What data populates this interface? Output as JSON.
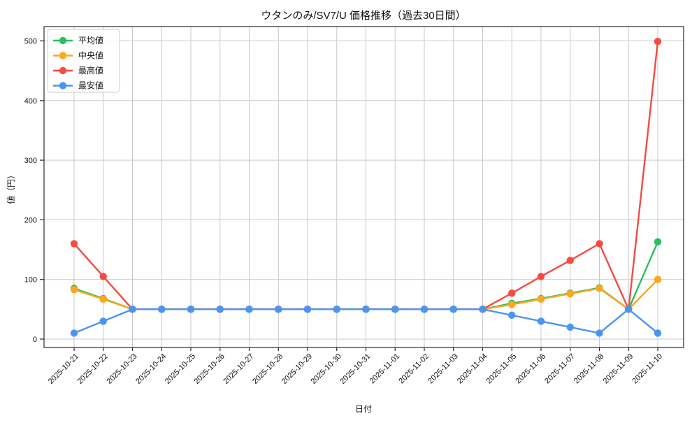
{
  "chart_data": {
    "type": "line",
    "title": "ウタンのみ/SV7/U 価格推移（過去30日間）",
    "xlabel": "日付",
    "ylabel": "値（円）",
    "ylim": [
      0,
      500
    ],
    "yticks": [
      0,
      100,
      200,
      300,
      400,
      500
    ],
    "grid": true,
    "legend_position": "upper-left",
    "categories": [
      "2025-10-21",
      "2025-10-22",
      "2025-10-23",
      "2025-10-24",
      "2025-10-25",
      "2025-10-26",
      "2025-10-27",
      "2025-10-28",
      "2025-10-29",
      "2025-10-30",
      "2025-10-31",
      "2025-11-01",
      "2025-11-02",
      "2025-11-03",
      "2025-11-04",
      "2025-11-05",
      "2025-11-06",
      "2025-11-07",
      "2025-11-08",
      "2025-11-09",
      "2025-11-10"
    ],
    "series": [
      {
        "key": "average",
        "name": "平均値",
        "color": "#2dbe60",
        "values": [
          85,
          68,
          50,
          50,
          50,
          50,
          50,
          50,
          50,
          50,
          50,
          50,
          50,
          50,
          50,
          60,
          68,
          77,
          86,
          50,
          163
        ]
      },
      {
        "key": "median",
        "name": "中央値",
        "color": "#ffa51e",
        "values": [
          83,
          67,
          50,
          50,
          50,
          50,
          50,
          50,
          50,
          50,
          50,
          50,
          50,
          50,
          50,
          58,
          67,
          76,
          85,
          50,
          100
        ]
      },
      {
        "key": "max",
        "name": "最高値",
        "color": "#f44b42",
        "values": [
          160,
          105,
          50,
          50,
          50,
          50,
          50,
          50,
          50,
          50,
          50,
          50,
          50,
          50,
          50,
          77,
          105,
          132,
          160,
          50,
          499
        ]
      },
      {
        "key": "min",
        "name": "最安値",
        "color": "#4b95f2",
        "values": [
          10,
          30,
          50,
          50,
          50,
          50,
          50,
          50,
          50,
          50,
          50,
          50,
          50,
          50,
          50,
          40,
          30,
          20,
          10,
          50,
          10
        ]
      }
    ],
    "colors": {
      "grid": "#c9c9c9",
      "spine": "#2a2a2a",
      "legend_border": "#cccccc",
      "legend_bg": "rgba(255,255,255,0.88)"
    }
  }
}
